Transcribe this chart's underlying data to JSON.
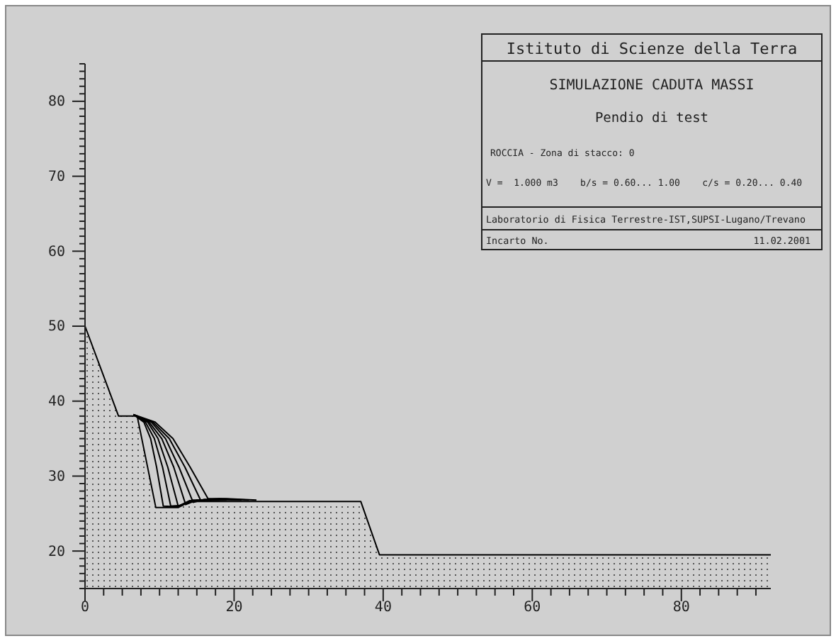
{
  "chart_data": {
    "type": "line",
    "title": "SIMULAZIONE CADUTA MASSI",
    "subtitle": "Pendio di test",
    "annotations": [
      "Istituto di Scienze della Terra",
      "ROCCIA - Zona di stacco: 0",
      "V =  1.000 m3    b/s = 0.60... 1.00    c/s = 0.20... 0.40",
      "Laboratorio di Fisica Terrestre-IST,SUPSI-Lugano/Trevano",
      "Incarto No.",
      "11.02.2001"
    ],
    "xlim": [
      0,
      92
    ],
    "ylim": [
      15,
      85
    ],
    "xticks": [
      0,
      {
        "value": 2.5,
        "label": null
      },
      {
        "value": 5,
        "label": null
      },
      {
        "value": 7.5,
        "label": null
      },
      {
        "value": 10,
        "label": null
      },
      {
        "value": 12.5,
        "label": null
      },
      {
        "value": 15,
        "label": null
      },
      {
        "value": 17.5,
        "label": null
      },
      20,
      {
        "value": 22.5,
        "label": null
      },
      {
        "value": 25,
        "label": null
      },
      {
        "value": 27.5,
        "label": null
      },
      {
        "value": 30,
        "label": null
      },
      {
        "value": 32.5,
        "label": null
      },
      {
        "value": 35,
        "label": null
      },
      {
        "value": 37.5,
        "label": null
      },
      40,
      {
        "value": 42.5,
        "label": null
      },
      {
        "value": 45,
        "label": null
      },
      {
        "value": 47.5,
        "label": null
      },
      {
        "value": 50,
        "label": null
      },
      {
        "value": 52.5,
        "label": null
      },
      {
        "value": 55,
        "label": null
      },
      {
        "value": 57.5,
        "label": null
      },
      60,
      {
        "value": 62.5,
        "label": null
      },
      {
        "value": 65,
        "label": null
      },
      {
        "value": 67.5,
        "label": null
      },
      {
        "value": 70,
        "label": null
      },
      {
        "value": 72.5,
        "label": null
      },
      {
        "value": 75,
        "label": null
      },
      {
        "value": 77.5,
        "label": null
      },
      80,
      {
        "value": 82.5,
        "label": null
      },
      {
        "value": 85,
        "label": null
      },
      {
        "value": 87.5,
        "label": null
      },
      {
        "value": 90,
        "label": null
      }
    ],
    "yticks": [
      {
        "value": 15,
        "label": null
      },
      {
        "value": 16,
        "label": null
      },
      {
        "value": 17,
        "label": null
      },
      {
        "value": 18,
        "label": null
      },
      {
        "value": 19,
        "label": null
      },
      20,
      {
        "value": 21,
        "label": null
      },
      {
        "value": 22,
        "label": null
      },
      {
        "value": 23,
        "label": null
      },
      {
        "value": 24,
        "label": null
      },
      {
        "value": 25,
        "label": null
      },
      {
        "value": 26,
        "label": null
      },
      {
        "value": 27,
        "label": null
      },
      {
        "value": 28,
        "label": null
      },
      {
        "value": 29,
        "label": null
      },
      30,
      {
        "value": 31,
        "label": null
      },
      {
        "value": 32,
        "label": null
      },
      {
        "value": 33,
        "label": null
      },
      {
        "value": 34,
        "label": null
      },
      {
        "value": 35,
        "label": null
      },
      {
        "value": 36,
        "label": null
      },
      {
        "value": 37,
        "label": null
      },
      {
        "value": 38,
        "label": null
      },
      {
        "value": 39,
        "label": null
      },
      40,
      {
        "value": 41,
        "label": null
      },
      {
        "value": 42,
        "label": null
      },
      {
        "value": 43,
        "label": null
      },
      {
        "value": 44,
        "label": null
      },
      {
        "value": 45,
        "label": null
      },
      {
        "value": 46,
        "label": null
      },
      {
        "value": 47,
        "label": null
      },
      {
        "value": 48,
        "label": null
      },
      {
        "value": 49,
        "label": null
      },
      50,
      {
        "value": 51,
        "label": null
      },
      {
        "value": 52,
        "label": null
      },
      {
        "value": 53,
        "label": null
      },
      {
        "value": 54,
        "label": null
      },
      {
        "value": 55,
        "label": null
      },
      {
        "value": 56,
        "label": null
      },
      {
        "value": 57,
        "label": null
      },
      {
        "value": 58,
        "label": null
      },
      {
        "value": 59,
        "label": null
      },
      60,
      {
        "value": 61,
        "label": null
      },
      {
        "value": 62,
        "label": null
      },
      {
        "value": 63,
        "label": null
      },
      {
        "value": 64,
        "label": null
      },
      {
        "value": 65,
        "label": null
      },
      {
        "value": 66,
        "label": null
      },
      {
        "value": 67,
        "label": null
      },
      {
        "value": 68,
        "label": null
      },
      {
        "value": 69,
        "label": null
      },
      70,
      {
        "value": 71,
        "label": null
      },
      {
        "value": 72,
        "label": null
      },
      {
        "value": 73,
        "label": null
      },
      {
        "value": 74,
        "label": null
      },
      {
        "value": 75,
        "label": null
      },
      {
        "value": 76,
        "label": null
      },
      {
        "value": 77,
        "label": null
      },
      {
        "value": 78,
        "label": null
      },
      {
        "value": 79,
        "label": null
      },
      80,
      {
        "value": 81,
        "label": null
      },
      {
        "value": 82,
        "label": null
      },
      {
        "value": 83,
        "label": null
      },
      {
        "value": 84,
        "label": null
      },
      {
        "value": 85,
        "label": null
      }
    ],
    "grid": false,
    "marker": "none",
    "line_style": "solid",
    "series": [
      {
        "type": "area",
        "color": "#000000",
        "x": [
          0,
          4.5,
          7,
          9.5,
          12.5,
          14,
          37,
          39.5,
          92
        ],
        "values": [
          50,
          38,
          38,
          25.8,
          25.8,
          26.6,
          26.6,
          19.5,
          19.5
        ]
      },
      {
        "color": "#000000",
        "x": [
          6.5,
          7.9,
          8.8,
          9.6,
          10.5,
          12.5,
          14,
          17
        ],
        "values": [
          38.2,
          37.2,
          35,
          31.2,
          26,
          25.9,
          26.7,
          26.8
        ]
      },
      {
        "color": "#000000",
        "x": [
          6.5,
          8.1,
          9.3,
          10.4,
          11.5,
          13,
          14.5,
          18
        ],
        "values": [
          38.2,
          37.2,
          35,
          31.2,
          26,
          26.1,
          26.8,
          26.8
        ]
      },
      {
        "color": "#000000",
        "x": [
          6.5,
          8.4,
          9.8,
          11.1,
          12.5,
          14,
          19
        ],
        "values": [
          38.2,
          37.2,
          35,
          31.2,
          26,
          26.7,
          26.8
        ]
      },
      {
        "color": "#000000",
        "x": [
          6.5,
          8.6,
          10.3,
          11.9,
          13.5,
          15,
          20
        ],
        "values": [
          38.2,
          37.2,
          35,
          31.2,
          26.2,
          26.8,
          26.9
        ]
      },
      {
        "color": "#000000",
        "x": [
          6.5,
          8.9,
          10.8,
          12.6,
          14.5,
          16,
          21
        ],
        "values": [
          38.2,
          37.2,
          35,
          31.2,
          26.5,
          26.9,
          26.8
        ]
      },
      {
        "color": "#000000",
        "x": [
          6.5,
          9.1,
          11.3,
          13.4,
          15.5,
          18,
          22
        ],
        "values": [
          38.2,
          37.2,
          35,
          31.2,
          26.8,
          27,
          26.8
        ]
      },
      {
        "color": "#000000",
        "x": [
          6.5,
          9.4,
          11.8,
          14.1,
          16.5,
          19,
          23
        ],
        "values": [
          38.2,
          37.2,
          35,
          31.2,
          27,
          27,
          26.8
        ]
      }
    ]
  }
}
